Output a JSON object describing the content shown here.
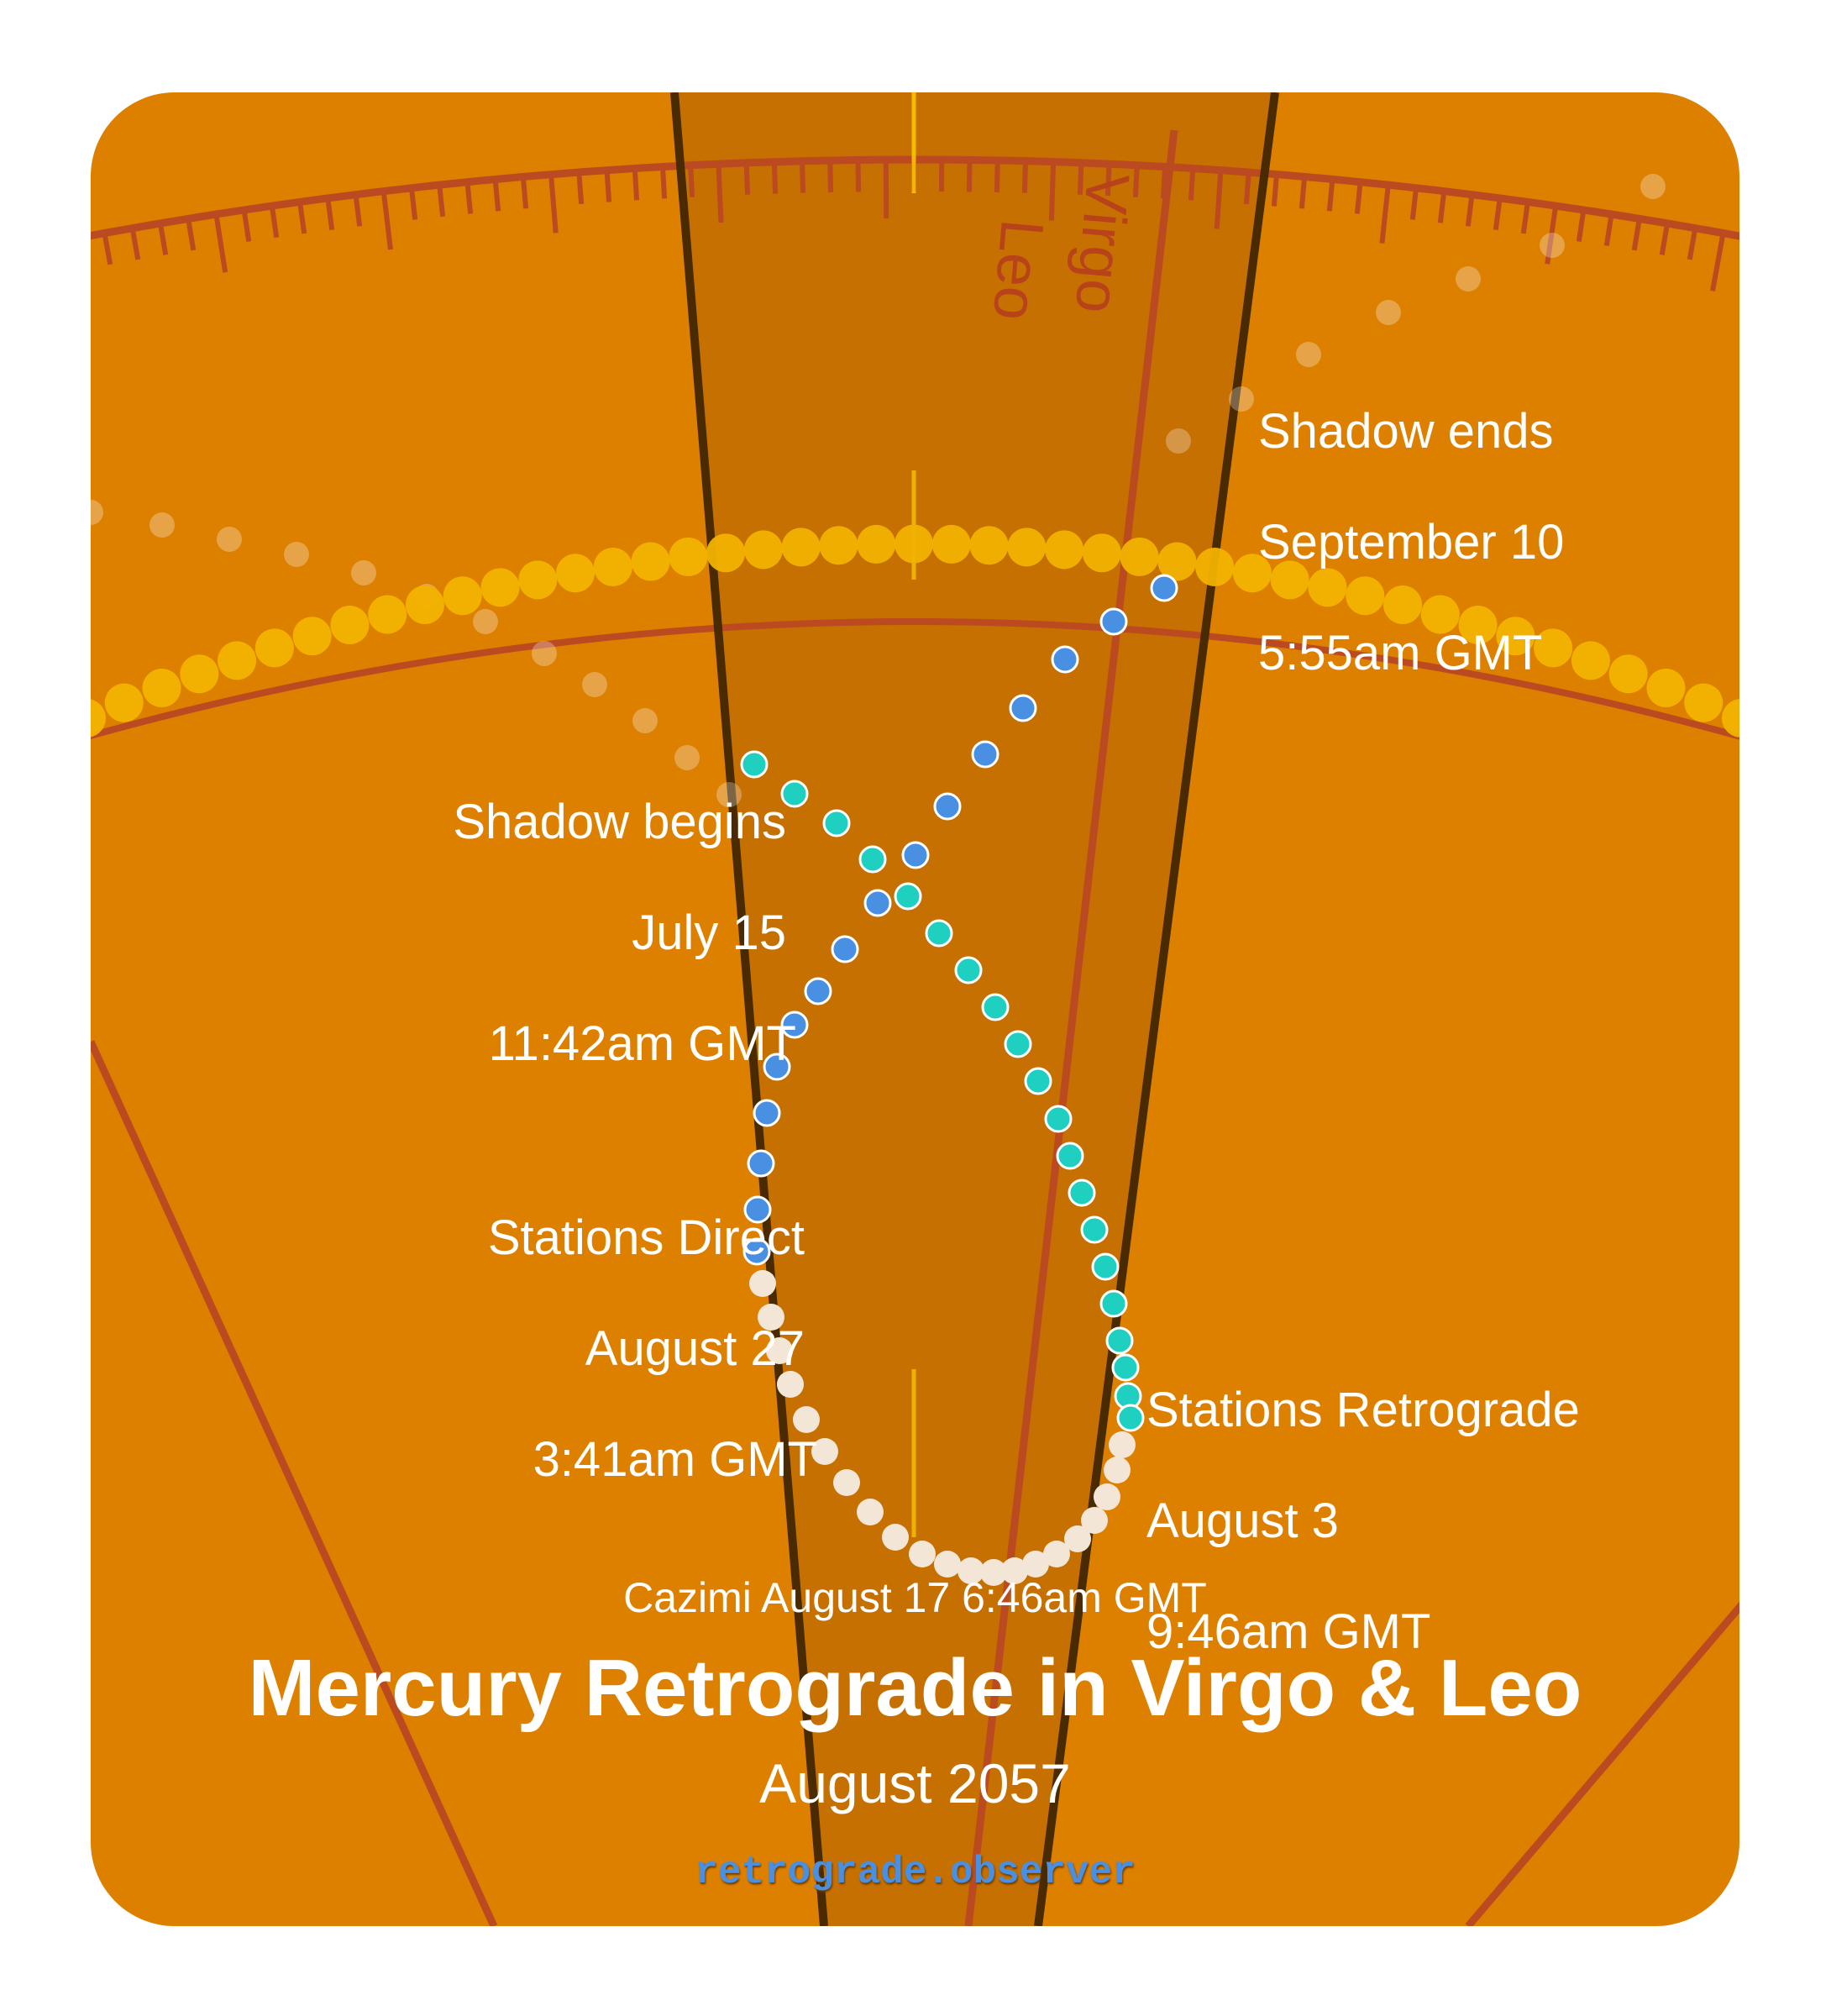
{
  "title": "Mercury Retrograde in Virgo & Leo",
  "subtitle": "August 2057",
  "cazimi": "Cazimi August 17 6:46am GMT",
  "site": "retrograde.observer",
  "signs": {
    "left": "Leo",
    "right": "Virgo"
  },
  "events": {
    "shadow_begins": {
      "title": "Shadow begins",
      "date": "July 15",
      "time": "11:42am GMT"
    },
    "stations_retrograde": {
      "title": "Stations Retrograde",
      "date": "August 3",
      "time": "9:46am GMT"
    },
    "stations_direct": {
      "title": "Stations Direct",
      "date": "August 27",
      "time": "3:41am GMT"
    },
    "shadow_ends": {
      "title": "Shadow ends",
      "date": "September 10",
      "time": "5:55am GMT"
    }
  },
  "colors": {
    "background": "#dd8000",
    "band": "#c57000",
    "sun": "#f2b200",
    "pre_shadow": "#1fcfc0",
    "retrograde": "#f4e6d6",
    "post_shadow": "#4a90e2",
    "zodiac_line": "#bb4a20"
  },
  "icons": {
    "mercury_path": "dot-trail",
    "sun_path": "sun-dot-trail"
  }
}
